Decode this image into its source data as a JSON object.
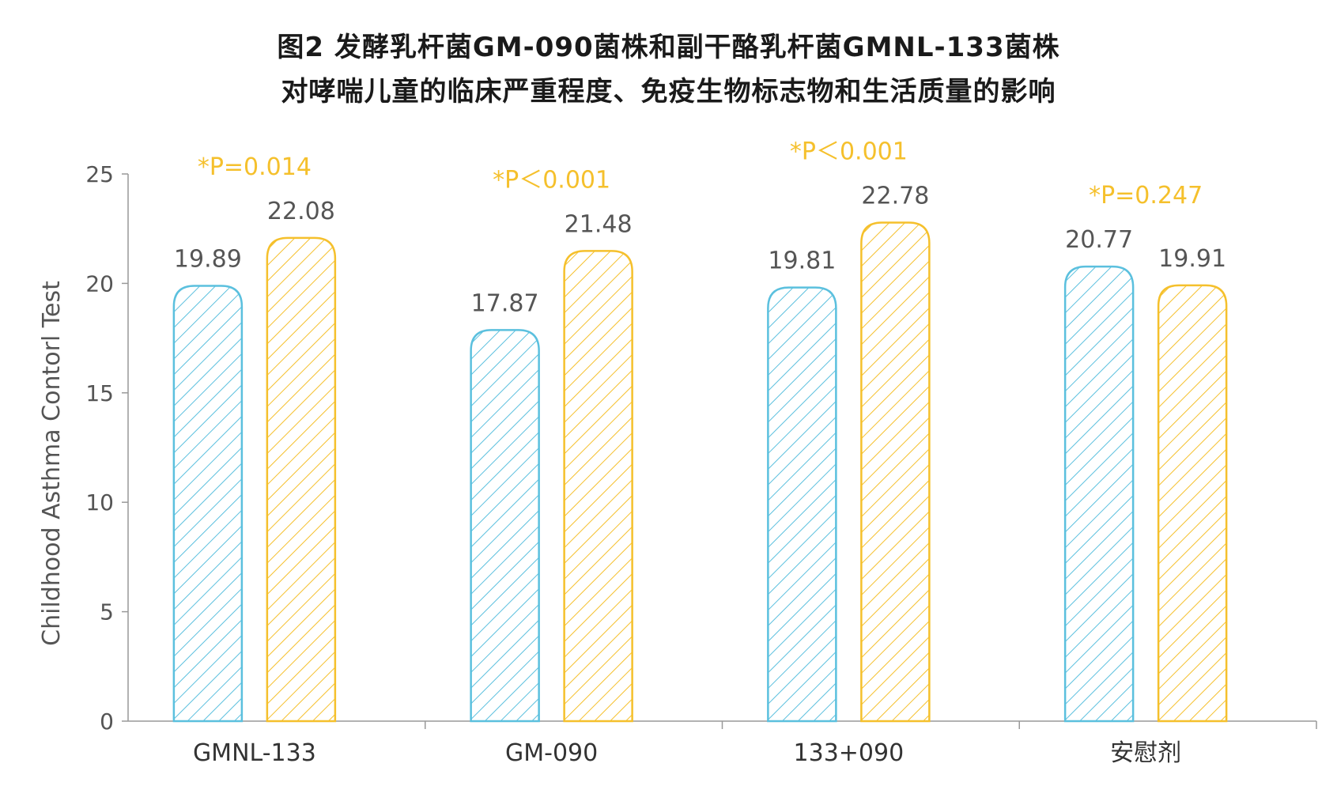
{
  "title": {
    "line1": "图2 发酵乳杆菌GM-090菌株和副干酪乳杆菌GMNL-133菌株",
    "line2": "对哮喘儿童的临床严重程度、免疫生物标志物和生活质量的影响"
  },
  "chart_data": {
    "type": "bar",
    "categories": [
      "GMNL-133",
      "GM-090",
      "133+090",
      "安慰剂"
    ],
    "series": [
      {
        "values": [
          19.89,
          17.87,
          19.81,
          20.77
        ],
        "color": "#5bc0de",
        "pattern": "diagonal-hatch"
      },
      {
        "values": [
          22.08,
          21.48,
          22.78,
          19.91
        ],
        "color": "#f5c02c",
        "pattern": "diagonal-hatch"
      }
    ],
    "value_labels": [
      [
        "19.89",
        "17.87",
        "19.81",
        "20.77"
      ],
      [
        "22.08",
        "21.48",
        "22.78",
        "19.91"
      ]
    ],
    "annotations": [
      "*P=0.014",
      "*P＜0.001",
      "*P＜0.001",
      "*P=0.247"
    ],
    "ylabel": "Childhood Asthma Contorl Test",
    "xlabel": "",
    "ylim": [
      0,
      25
    ],
    "yticks": [
      0,
      5,
      10,
      15,
      20,
      25
    ],
    "legend": "none",
    "grid": false
  }
}
